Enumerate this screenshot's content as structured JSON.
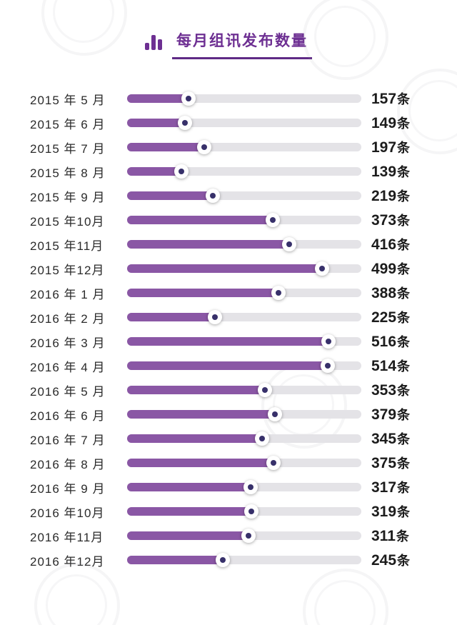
{
  "header": {
    "title": "每月组讯发布数量",
    "icon": "bar-chart-icon"
  },
  "colors": {
    "title": "#6d2f92",
    "bar_fill": "#8a57a5",
    "bar_track": "#e4e3e7",
    "knob_dot": "#37306a",
    "value_text": "#1c1c1c"
  },
  "chart_data": {
    "type": "bar",
    "orientation": "horizontal",
    "title": "每月组讯发布数量",
    "unit": "条",
    "xlim": [
      0,
      600
    ],
    "grid": false,
    "legend": false,
    "categories": [
      "2015 年 5 月",
      "2015 年 6 月",
      "2015 年 7 月",
      "2015 年 8 月",
      "2015 年 9 月",
      "2015 年10月",
      "2015 年11月",
      "2015 年12月",
      "2016 年 1 月",
      "2016 年 2 月",
      "2016 年 3 月",
      "2016 年 4 月",
      "2016 年 5 月",
      "2016 年 6 月",
      "2016 年 7 月",
      "2016 年 8 月",
      "2016 年 9 月",
      "2016 年10月",
      "2016 年11月",
      "2016 年12月"
    ],
    "values": [
      157,
      149,
      197,
      139,
      219,
      373,
      416,
      499,
      388,
      225,
      516,
      514,
      353,
      379,
      345,
      375,
      317,
      319,
      311,
      245
    ]
  }
}
